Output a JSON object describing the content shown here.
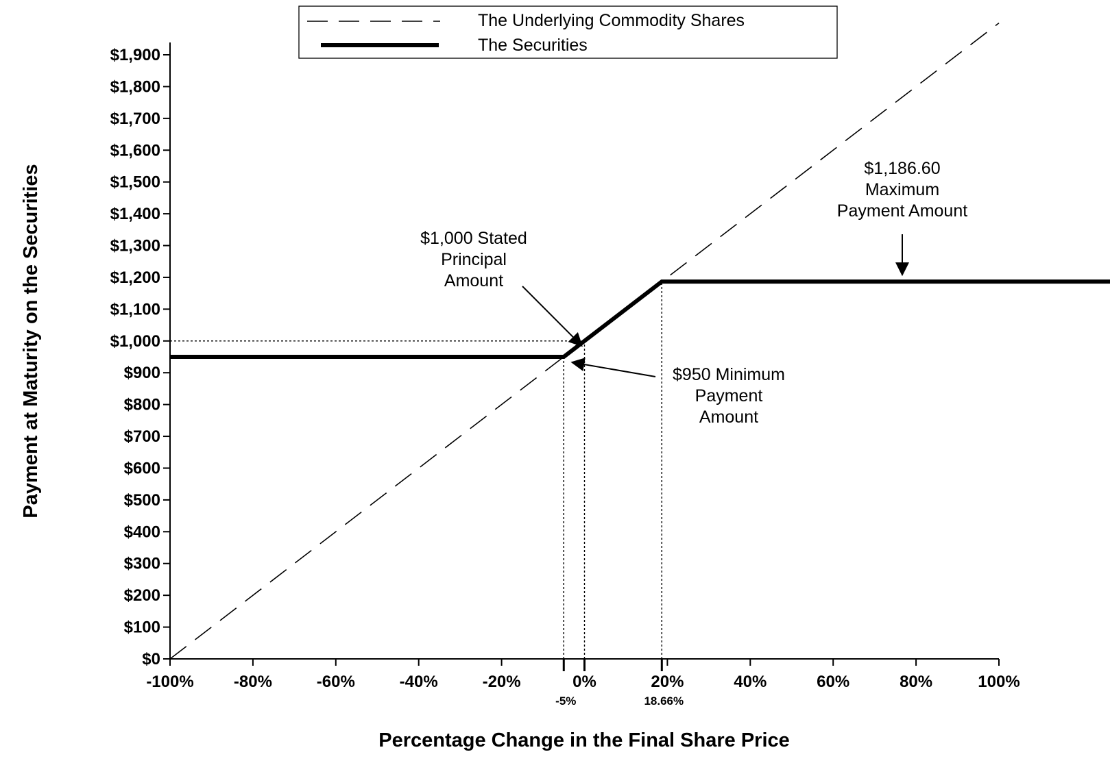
{
  "chart_data": {
    "type": "line",
    "title": "",
    "xlabel": "Percentage Change in the Final Share Price",
    "ylabel": "Payment at Maturity on the Securities",
    "xlim": [
      -100,
      100
    ],
    "ylim": [
      0,
      1900
    ],
    "x_ticks": [
      -100,
      -80,
      -60,
      -40,
      -20,
      0,
      20,
      40,
      60,
      80,
      100
    ],
    "x_tick_labels": [
      "-100%",
      "-80%",
      "-60%",
      "-40%",
      "-20%",
      "0%",
      "20%",
      "40%",
      "60%",
      "80%",
      "100%"
    ],
    "extra_x_labels": [
      {
        "x": -5,
        "label": "-5%"
      },
      {
        "x": 18.66,
        "label": "18.66%"
      }
    ],
    "y_ticks": [
      0,
      100,
      200,
      300,
      400,
      500,
      600,
      700,
      800,
      900,
      1000,
      1100,
      1200,
      1300,
      1400,
      1500,
      1600,
      1700,
      1800,
      1900
    ],
    "y_tick_labels": [
      "$0",
      "$100",
      "$200",
      "$300",
      "$400",
      "$500",
      "$600",
      "$700",
      "$800",
      "$900",
      "$1,000",
      "$1,100",
      "$1,200",
      "$1,300",
      "$1,400",
      "$1,500",
      "$1,600",
      "$1,700",
      "$1,800",
      "$1,900"
    ],
    "grid": false,
    "legend_position": "top",
    "series": [
      {
        "name": "The Underlying Commodity Shares",
        "style": "dashed",
        "points": [
          [
            -100,
            0
          ],
          [
            100,
            2000
          ]
        ]
      },
      {
        "name": "The Securities",
        "style": "solid-thick",
        "points": [
          [
            -100,
            950
          ],
          [
            -5,
            950
          ],
          [
            18.66,
            1186.6
          ],
          [
            100,
            1186.6
          ]
        ]
      }
    ],
    "reference_lines": [
      {
        "type": "horizontal",
        "y": 1000,
        "from_x": -100,
        "to_x": 0
      },
      {
        "type": "vertical",
        "x": -5,
        "from_y": 0,
        "to_y": 950
      },
      {
        "type": "vertical",
        "x": 0,
        "from_y": 0,
        "to_y": 1000
      },
      {
        "type": "vertical",
        "x": 18.66,
        "from_y": 0,
        "to_y": 1186.6
      }
    ],
    "annotations": [
      {
        "id": "principal",
        "lines": [
          "$1,000 Stated",
          "Principal",
          "Amount"
        ],
        "points_to": [
          0,
          1000
        ]
      },
      {
        "id": "minimum",
        "lines": [
          "$950 Minimum",
          "Payment",
          "Amount"
        ],
        "points_to": [
          -3,
          950
        ]
      },
      {
        "id": "maximum",
        "lines": [
          "$1,186.60",
          "Maximum",
          "Payment Amount"
        ],
        "points_to": [
          77,
          1186.6
        ]
      }
    ]
  }
}
